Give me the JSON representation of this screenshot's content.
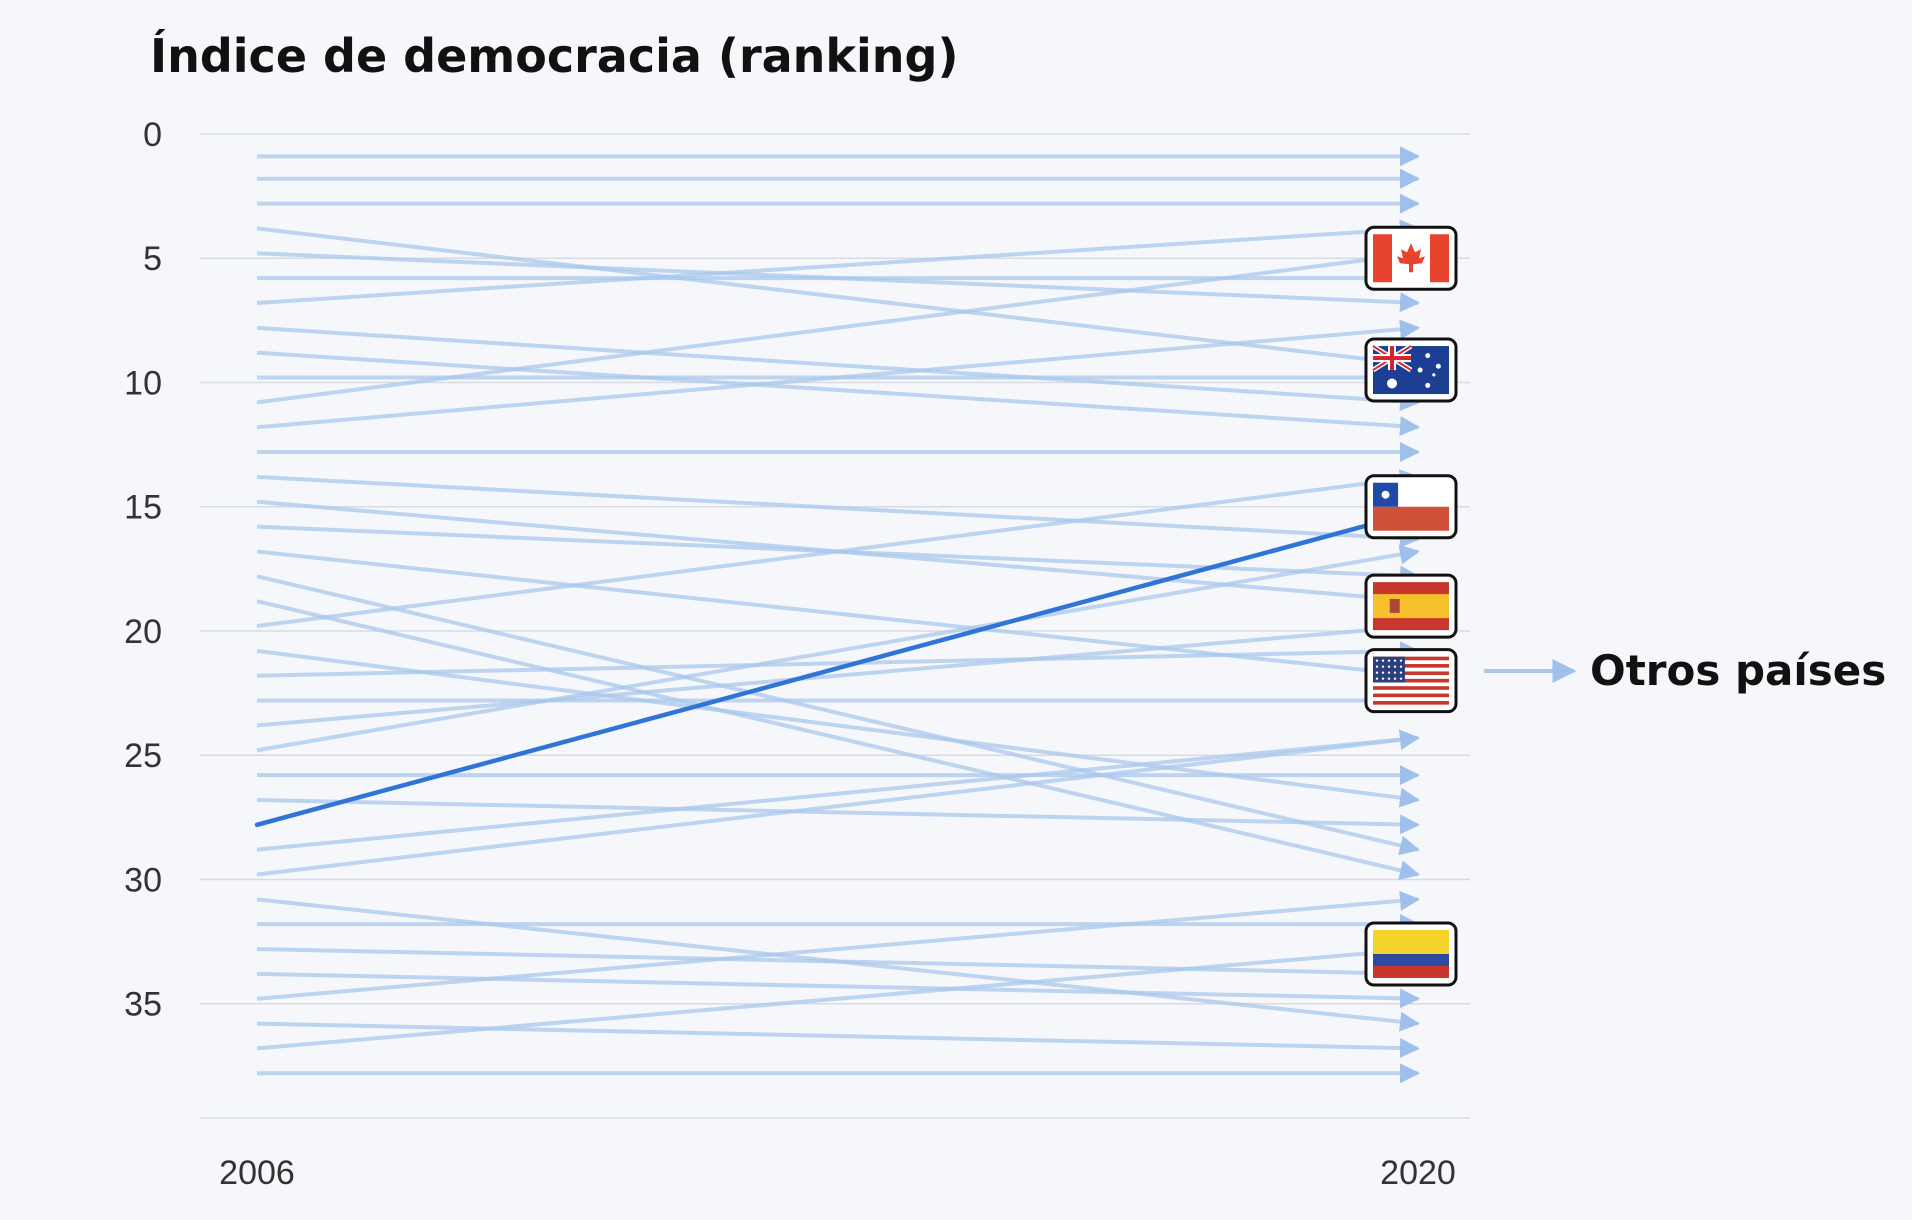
{
  "chart_data": {
    "type": "slope",
    "title": "Índice de democracia (ranking)",
    "xlabel": "",
    "ylabel": "",
    "x_categories": [
      "2006",
      "2020"
    ],
    "y_ticks": [
      0,
      5,
      10,
      15,
      20,
      25,
      30,
      35
    ],
    "ylim": [
      0,
      39.6
    ],
    "y_inverted": true,
    "colors": {
      "background": "#f6f7fb",
      "gridline": "#d9dbe3",
      "other_lines": "#aac8ec",
      "highlight": "#2f74d6",
      "text": "#111111"
    },
    "highlight": {
      "name": "Chile",
      "rank_2006": 27.8,
      "rank_2020": 15.2
    },
    "legend": {
      "label": "Otros países",
      "symbol": "arrow-icon"
    },
    "series": [
      {
        "rank_2006": 0.9,
        "rank_2020": 0.9
      },
      {
        "rank_2006": 1.8,
        "rank_2020": 1.8
      },
      {
        "rank_2006": 2.8,
        "rank_2020": 2.8
      },
      {
        "rank_2006": 3.8,
        "rank_2020": 9.3
      },
      {
        "rank_2006": 4.8,
        "rank_2020": 6.8
      },
      {
        "rank_2006": 5.8,
        "rank_2020": 5.8
      },
      {
        "rank_2006": 6.8,
        "rank_2020": 3.8
      },
      {
        "rank_2006": 7.8,
        "rank_2020": 10.8
      },
      {
        "rank_2006": 8.8,
        "rank_2020": 11.8
      },
      {
        "rank_2006": 9.8,
        "rank_2020": 9.8
      },
      {
        "rank_2006": 10.8,
        "rank_2020": 4.8
      },
      {
        "rank_2006": 11.8,
        "rank_2020": 7.8
      },
      {
        "rank_2006": 12.8,
        "rank_2020": 12.8
      },
      {
        "rank_2006": 13.8,
        "rank_2020": 16.3
      },
      {
        "rank_2006": 14.8,
        "rank_2020": 18.8
      },
      {
        "rank_2006": 15.8,
        "rank_2020": 17.8
      },
      {
        "rank_2006": 16.8,
        "rank_2020": 21.8
      },
      {
        "rank_2006": 17.8,
        "rank_2020": 28.8
      },
      {
        "rank_2006": 18.8,
        "rank_2020": 29.8
      },
      {
        "rank_2006": 19.8,
        "rank_2020": 13.8
      },
      {
        "rank_2006": 20.8,
        "rank_2020": 26.8
      },
      {
        "rank_2006": 21.8,
        "rank_2020": 20.8
      },
      {
        "rank_2006": 22.8,
        "rank_2020": 22.8
      },
      {
        "rank_2006": 23.8,
        "rank_2020": 19.8
      },
      {
        "rank_2006": 24.8,
        "rank_2020": 16.8
      },
      {
        "rank_2006": 25.8,
        "rank_2020": 25.8
      },
      {
        "rank_2006": 26.8,
        "rank_2020": 27.8
      },
      {
        "rank_2006": 28.8,
        "rank_2020": 24.3
      },
      {
        "rank_2006": 29.8,
        "rank_2020": 24.3
      },
      {
        "rank_2006": 30.8,
        "rank_2020": 35.8
      },
      {
        "rank_2006": 31.8,
        "rank_2020": 31.8
      },
      {
        "rank_2006": 32.8,
        "rank_2020": 33.8
      },
      {
        "rank_2006": 33.8,
        "rank_2020": 34.8
      },
      {
        "rank_2006": 34.8,
        "rank_2020": 30.8
      },
      {
        "rank_2006": 35.8,
        "rank_2020": 36.8
      },
      {
        "rank_2006": 36.8,
        "rank_2020": 32.8
      },
      {
        "rank_2006": 37.8,
        "rank_2020": 37.8
      }
    ],
    "flags": [
      {
        "country": "Canada",
        "icon": "canada-flag-icon",
        "rank_2020": 5
      },
      {
        "country": "Australia",
        "icon": "australia-flag-icon",
        "rank_2020": 9.5
      },
      {
        "country": "Chile",
        "icon": "chile-flag-icon",
        "rank_2020": 15
      },
      {
        "country": "Spain",
        "icon": "spain-flag-icon",
        "rank_2020": 19
      },
      {
        "country": "United States",
        "icon": "usa-flag-icon",
        "rank_2020": 22
      },
      {
        "country": "Colombia",
        "icon": "colombia-flag-icon",
        "rank_2020": 33
      }
    ]
  }
}
